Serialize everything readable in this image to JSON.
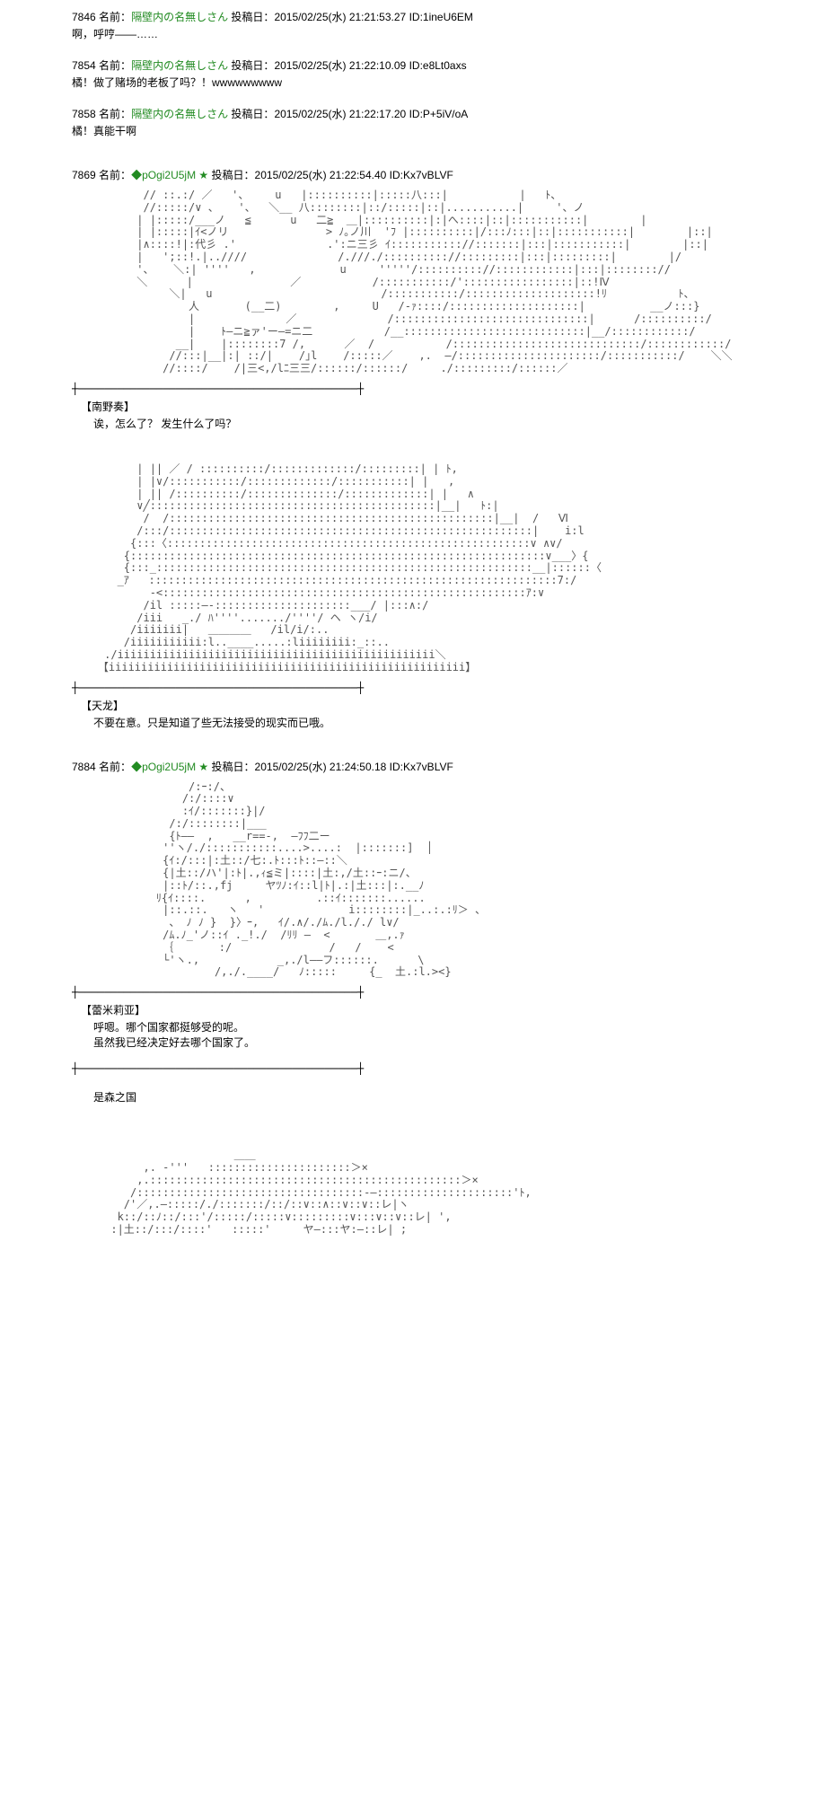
{
  "labels": {
    "name": "名前：",
    "date": "投稿日："
  },
  "posts": [
    {
      "num": "7846",
      "name": "隔壁内の名無しさん",
      "date": "2015/02/25(水) 21:21:53.27",
      "id": "ID:1ineU6EM",
      "body": "啊，呼哼――……"
    },
    {
      "num": "7854",
      "name": "隔壁内の名無しさん",
      "date": "2015/02/25(水) 21:22:10.09",
      "id": "ID:e8Lt0axs",
      "body": "橘！做了赌场的老板了吗？！wwwwwwwww"
    },
    {
      "num": "7858",
      "name": "隔壁内の名無しさん",
      "date": "2015/02/25(水) 21:22:17.20",
      "id": "ID:P+5iV/oA",
      "body": "橘！真能干啊"
    },
    {
      "num": "7869",
      "name": "◆pOgi2U5jM ★",
      "date": "2015/02/25(水) 21:22:54.40",
      "id": "ID:Kx7vBLVF",
      "aa1": "           // ::.:/ ／   '、    u   |::::::::::|:::::八:::|           |   ﾄ、\n           //:::::/∨ 、   '、  ＼__ 八::::::::|::/:::::|::|...........|     '、ノ\n          | |:::::/___ノ   ≦      u   二≧  ＿|::::::::::|:|へ::::|::|:::::::::::|        |\n          | |:::::|ｲ<ノリ               > ﾉ｡ノ川  'ﾌ |::::::::::|/:::ﾉ:::|::|:::::::::::|        |::|\n          |∧::::!|:代彡 .'              .':ニ三彡 ｲ::::::::::://:::::::|:::|:::::::::::|        |::|\n          |   ';::!.|..////              /.///./:::::::::://:::::::::|:::|:::::::::|        |/\n          '、   ＼:| ''''   ,             u     '''''/:::::::::://::::::::::::|:::|:::::::://\n          ＼      |               ／           /:::::::::::/':::::::::::::::::|::!Ⅳ\n               ＼|   u                          /:::::::::::/::::::::::::::::::::!ﾘ           ﾄ、\n                  人       (__二)        ,     U   /-ｧ::::/::::::::::::::::::::|          __ノ:::}\n                  |              ／              /::::::::::::::::::::::::::::::|      /::::::::::/\n                  |    ﾄ―ニ≧ァ'ー―=ニ二           /__::::::::::::::::::::::::::::|__/::::::::::::/\n                __|    |::::::::7 /,      ／  /           /:::::::::::::::::::::::::::::/::::::::::::/\n               //:::|__|:| ::/|    /｣l    /:::::／    ,.  ―/::::::::::::::::::::::/:::::::::::/    ＼＼\n              //::::/    /|三<,/lﾆ三三/::::::/::::::/     ./:::::::::/::::::／",
      "speaker1": "【南野奏】",
      "dialogue1": "诶，怎么了？  发生什么了吗？",
      "aa2": "          | || ／ / ::::::::::/:::::::::::::/:::::::::| | ﾄ,\n          | |∨/:::::::::::/:::::::::::::/:::::::::::| |   ,\n          | || /::::::::::/::::::::::::::/:::::::::::::| |   ∧\n          ∨╱::::::::::::::::::::::::::::::::::::::::::::|__|   ﾄ:|\n           /  /::::::::::::::::::::::::::::::::::::::::::::::::::|__|  /   Ⅵ\n          /:::/::::::::::::::::::::::::::::::::::::::::::::::::::::::::|    i:l\n         {:::〈::::::::::::::::::::::::::::::::::::::::::::::::::::::::∨ ∧∨/\n        {::::::::::::::::::::::::::::::::::::::::::::::::::::::::::::::::∨___〉{\n        {:::_::::::::::::::::::::::::::::::::::::::::::::::::::::::::::__|::::::〈\n       _ｱ   :::::::::::::::::::::::::::::::::::::::::::::::::::::::::::::::7:/\n            -<::::::::::::::::::::::::::::::::::::::::::::::::::::::::ｱ:∨\n           /il :::::―‐:::::::::::::::::::::___/ |:::∧:/\n          /iii   _./ ﾊ''''......./''''/ ヘ ヽ/i/\n         /iiiiiii|   ＿＿＿＿   /il/i/:..\n        /iiiiiiiiiii:l..____.....:liiiiiiii:_::..\n     ./iiiiiiiiiiiiiiiiiiiiiiiiiiiiiiiiiiiiiiiiiiiiiiiii＼\n    【iiiiiiiiiiiiiiiiiiiiiiiiiiiiiiiiiiiiiiiiiiiiiiiiiiiiiii】",
      "speaker2": "【天龙】",
      "dialogue2": "不要在意。只是知道了些无法接受的现实而已哦。"
    },
    {
      "num": "7884",
      "name": "◆pOgi2U5jM ★",
      "date": "2015/02/25(水) 21:24:50.18",
      "id": "ID:Kx7vBLVF",
      "aa1": "                  /:ｰ:/、\n                 /:/::::∨\n                 :ｲ/:::::::}|/\n               /:/::::::::|___\n               {ﾄ――  ,   __r==-,  ―ﾌﾌ二ー\n              ''ヽ/./:::::::::::....>....:  |:::::::]  │\n              {ｲ:/:::|:土::/七:.ﾄ:::ﾄ::―::＼\n              {|土::/ハ'|:ﾄ|.,ｨ≦ミ|::::|土:,/土::ｰ:ニ/、\n              |::ﾄ/::.,fj     ヤﾂﾉ:ｲ::l|ﾄ|.:|土:::|:.__ﾉ\n             ﾘ{ｲ::::.      ,          .::ｲ:::::::......\n              |::.::.   ヽ   '             i::::::::|_..:.:ﾘ＞ 、\n               、 ﾉ ﾉ }  }〉ｰ,   ｲ/.∧/./ﾑ./l././ l∨/\n              /ﾑ.ﾉ_'ノ::ｲ ._!./  /ﾘﾘ ―  <       ＿,.ｧ\n              ｛       :/               /   /    <\n              └'ヽ.,            _,./l――フ::::::.      \\\n                      /,./.____/   ﾉ:::::     {_  土.:l.><}",
      "speaker1": "【蕾米莉亚】",
      "dialogue1": "呼嗯。哪个国家都挺够受的呢。\n虽然我已经决定好去哪个国家了。",
      "dialogue2": "是森之国",
      "aa2": "                         ＿＿\n           ,. -'''   ::::::::::::::::::::::＞×\n          ,.::::::::::::::::::::::::::::::::::::::::::::::::＞×\n         /:::::::::::::::::::::::::::::::::::-―:::::::::::::::::::::'ﾄ,\n        /'／,.―:::::/./:::::::/::/::∨::∧::∨::∨::レ|ヽ\n       k::/::ﾉ::/:::'/:::::/:::::∨:::::::::∨:::∨::∨::レ| ',\n      :|土::/:::/::::'   :::::'     ヤ―:::ヤ:―::レ| ;"
    }
  ]
}
